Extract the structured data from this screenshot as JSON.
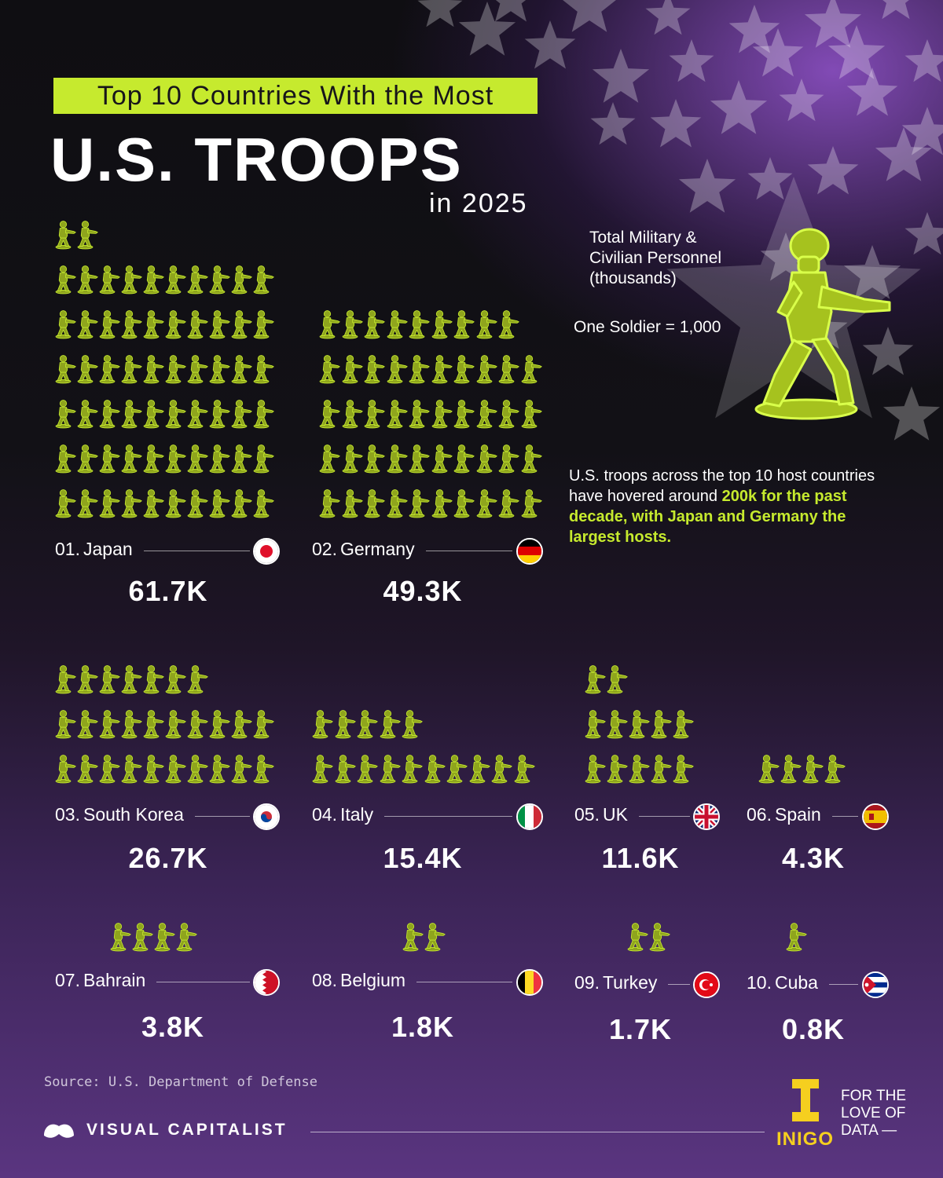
{
  "title": {
    "banner": "Top 10 Countries With the Most",
    "main": "U.S. TROOPS",
    "sub": "in 2025"
  },
  "legend": {
    "measure": "Total Military &\nCivilian Personnel\n(thousands)",
    "unit": "One Soldier = 1,000"
  },
  "callout": {
    "text": "U.S. troops across the top 10 host countries have hovered around",
    "highlight": "200k for the past decade, with Japan and Germany the largest hosts."
  },
  "chart_data": {
    "type": "pictogram",
    "unit_per_icon": 1000,
    "categories": [
      "Japan",
      "Germany",
      "South Korea",
      "Italy",
      "UK",
      "Spain",
      "Bahrain",
      "Belgium",
      "Turkey",
      "Cuba"
    ],
    "values": [
      61.7,
      49.3,
      26.7,
      15.4,
      11.6,
      4.3,
      3.8,
      1.8,
      1.7,
      0.8
    ],
    "value_unit": "thousands",
    "items": [
      {
        "rank": "01.",
        "country": "Japan",
        "value_label": "61.7K",
        "value": 61.7,
        "flag": "japan"
      },
      {
        "rank": "02.",
        "country": "Germany",
        "value_label": "49.3K",
        "value": 49.3,
        "flag": "germany"
      },
      {
        "rank": "03.",
        "country": "South Korea",
        "value_label": "26.7K",
        "value": 26.7,
        "flag": "south-korea"
      },
      {
        "rank": "04.",
        "country": "Italy",
        "value_label": "15.4K",
        "value": 15.4,
        "flag": "italy"
      },
      {
        "rank": "05.",
        "country": "UK",
        "value_label": "11.6K",
        "value": 11.6,
        "flag": "uk"
      },
      {
        "rank": "06.",
        "country": "Spain",
        "value_label": "4.3K",
        "value": 4.3,
        "flag": "spain"
      },
      {
        "rank": "07.",
        "country": "Bahrain",
        "value_label": "3.8K",
        "value": 3.8,
        "flag": "bahrain"
      },
      {
        "rank": "08.",
        "country": "Belgium",
        "value_label": "1.8K",
        "value": 1.8,
        "flag": "belgium"
      },
      {
        "rank": "09.",
        "country": "Turkey",
        "value_label": "1.7K",
        "value": 1.7,
        "flag": "turkey"
      },
      {
        "rank": "10.",
        "country": "Cuba",
        "value_label": "0.8K",
        "value": 0.8,
        "flag": "cuba"
      }
    ]
  },
  "footer": {
    "source": "Source: U.S. Department of Defense",
    "brand": "VISUAL CAPITALIST",
    "partner": "INIGO",
    "tagline": "FOR THE\nLOVE OF\nDATA —"
  },
  "colors": {
    "accent": "#c6ea2e",
    "soldier": "#8fa51d",
    "partner": "#f5cf1f"
  }
}
